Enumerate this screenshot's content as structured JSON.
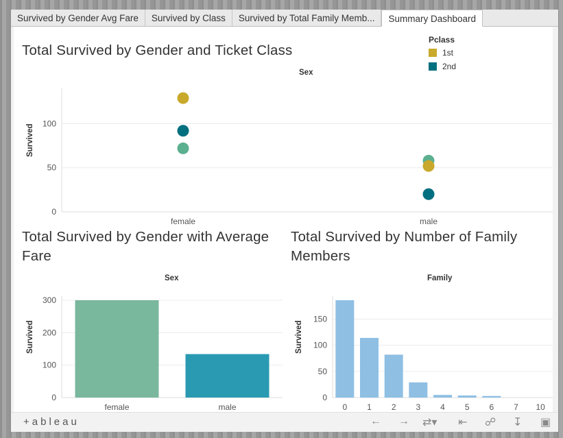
{
  "tabs": [
    {
      "label": "Survived by Gender Avg Fare",
      "active": false
    },
    {
      "label": "Survived by Class",
      "active": false
    },
    {
      "label": "Survived by Total Family Memb...",
      "active": false
    },
    {
      "label": "Summary Dashboard",
      "active": true
    }
  ],
  "colors": {
    "first": "#c9a92c",
    "second": "#006f7f",
    "third": "#5bb08f",
    "bar1_female": "#7ab89e",
    "bar1_male": "#2a9ab2",
    "bar2": "#8fbfe3"
  },
  "legend": {
    "title": "Pclass",
    "items": [
      {
        "label": "1st",
        "color": "#c9a92c"
      },
      {
        "label": "2nd",
        "color": "#006f7f"
      }
    ]
  },
  "toolbar": {
    "logo": "+ableau",
    "icons": [
      "undo-icon",
      "redo-icon",
      "revert-icon",
      "reset-icon",
      "share-icon",
      "download-icon",
      "fullscreen-icon"
    ]
  },
  "chart_data": [
    {
      "type": "scatter",
      "title": "Total Survived by Gender and Ticket Class",
      "xlabel": "Sex",
      "ylabel": "Survived",
      "categories": [
        "female",
        "male"
      ],
      "yticks": [
        "0",
        "50",
        "100"
      ],
      "ylim": [
        0,
        140
      ],
      "series": [
        {
          "name": "1st",
          "values": [
            129,
            52
          ]
        },
        {
          "name": "2nd",
          "values": [
            92,
            20
          ]
        },
        {
          "values": [
            72,
            58
          ]
        }
      ]
    },
    {
      "type": "bar",
      "title": "Total Survived by Gender with Average Fare",
      "xlabel": "Sex",
      "ylabel": "Survived",
      "categories": [
        "female",
        "male"
      ],
      "values": [
        300,
        134
      ],
      "yticks": [
        "0",
        "100",
        "200",
        "300"
      ],
      "ylim": [
        0,
        300
      ]
    },
    {
      "type": "bar",
      "title": "Total Survived by Number of Family Members",
      "xlabel": "Family",
      "ylabel": "Survived",
      "categories": [
        "0",
        "1",
        "2",
        "3",
        "4",
        "5",
        "6",
        "7",
        "10"
      ],
      "values": [
        186,
        114,
        82,
        29,
        5,
        4,
        3,
        0,
        0
      ],
      "yticks": [
        "0",
        "50",
        "100",
        "150"
      ],
      "ylim": [
        0,
        186
      ]
    }
  ]
}
